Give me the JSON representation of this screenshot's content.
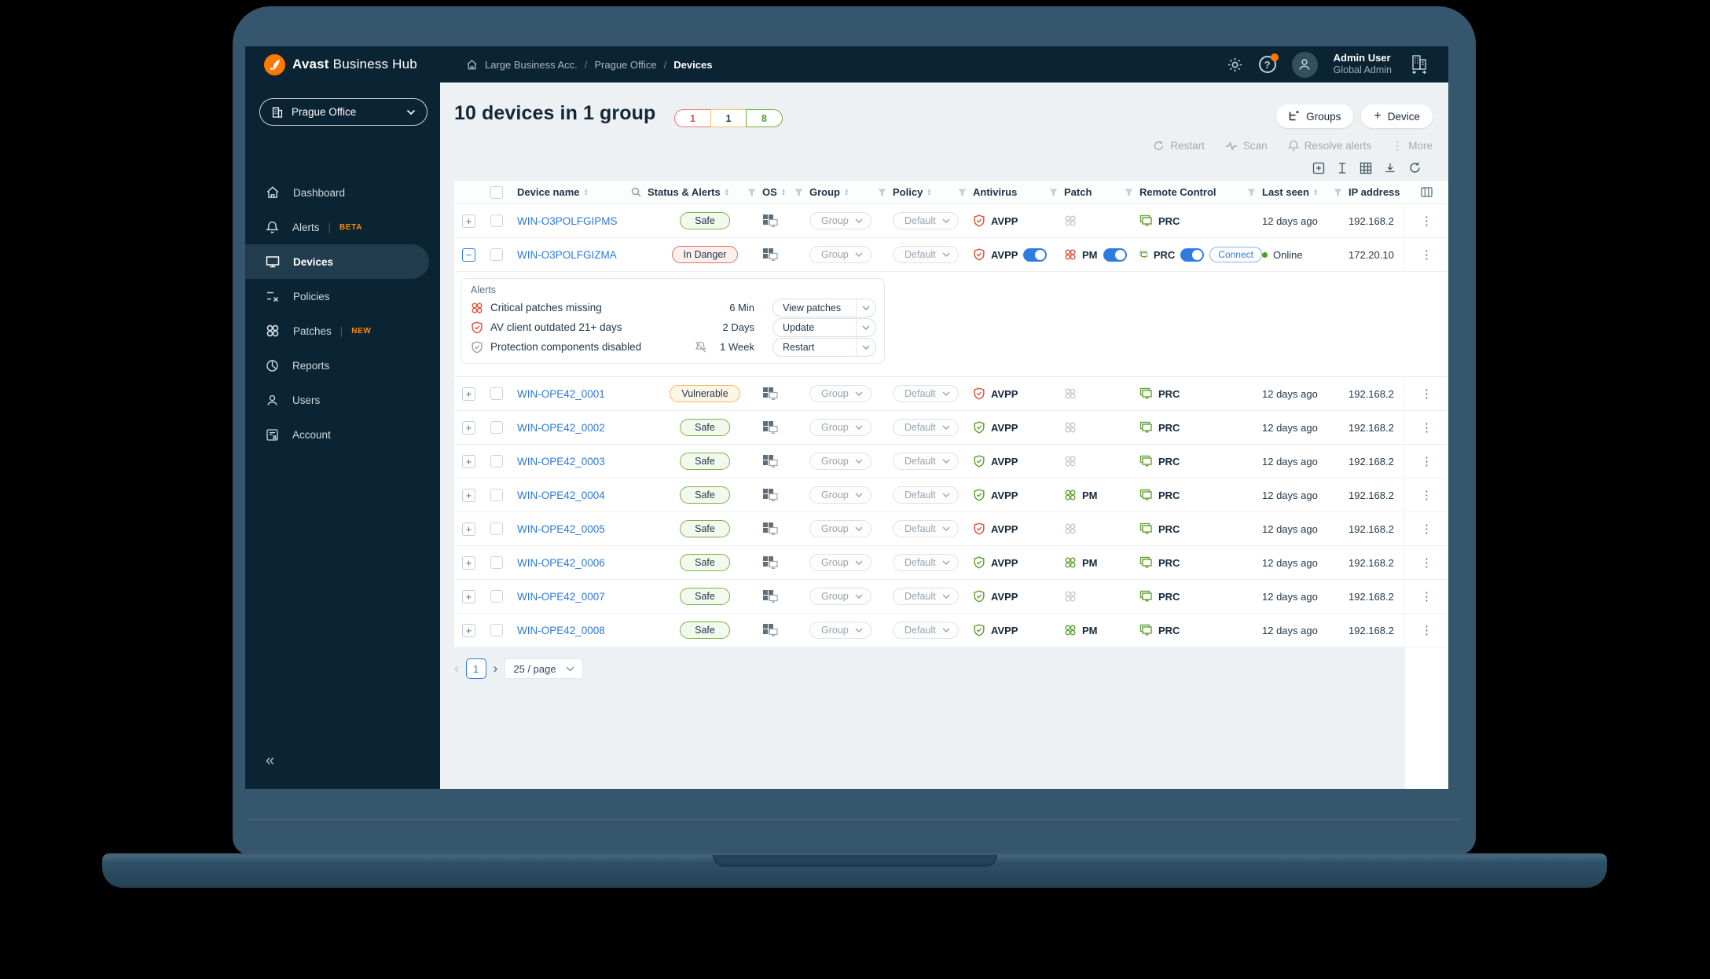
{
  "colors": {
    "navy": "#0b2433",
    "accent_blue": "#2f7ce0",
    "link_blue": "#2b78dd",
    "green": "#61a333",
    "red": "#e2543e",
    "orange_badge": "#eeb95c",
    "brand_orange": "#ff7800",
    "tag_orange": "#ff8a00",
    "content_bg": "#eef1f3"
  },
  "topbar": {
    "brand_bold": "Avast",
    "brand_rest": "Business Hub",
    "breadcrumb": [
      "Large Business Acc.",
      "Prague Office",
      "Devices"
    ],
    "user_name": "Admin User",
    "user_role": "Global Admin"
  },
  "sidebar": {
    "org_selector": "Prague Office",
    "items": [
      {
        "label": "Dashboard",
        "icon": "home-icon"
      },
      {
        "label": "Alerts",
        "icon": "bell-icon",
        "tag": "BETA"
      },
      {
        "label": "Devices",
        "icon": "monitor-icon",
        "selected": true
      },
      {
        "label": "Policies",
        "icon": "policies-icon"
      },
      {
        "label": "Patches",
        "icon": "patch-icon",
        "tag": "NEW"
      },
      {
        "label": "Reports",
        "icon": "pie-icon"
      },
      {
        "label": "Users",
        "icon": "person-icon"
      },
      {
        "label": "Account",
        "icon": "account-icon"
      }
    ],
    "collapse_glyph": "«"
  },
  "page": {
    "title": "10 devices in 1 group",
    "badges": [
      {
        "value": "1",
        "border": "#e87a74",
        "text": "#d94f4f"
      },
      {
        "value": "1",
        "border": "#ecc069",
        "text": "#2b3d4c"
      },
      {
        "value": "8",
        "border": "#74ad3f",
        "text": "#4f9e27"
      }
    ],
    "groups_button": "Groups",
    "device_button": "Device",
    "device_plus": "+",
    "bulk_actions": [
      {
        "label": "Restart",
        "icon": "restart-icon"
      },
      {
        "label": "Scan",
        "icon": "scan-icon"
      },
      {
        "label": "Resolve alerts",
        "icon": "bell-icon"
      },
      {
        "label": "More",
        "icon": "kebab-icon"
      }
    ]
  },
  "table": {
    "columns": [
      {
        "label": "Device name",
        "sort": true,
        "search": true
      },
      {
        "label": "Status & Alerts",
        "sort": true,
        "filter": true
      },
      {
        "label": "OS",
        "sort": true,
        "filter": true
      },
      {
        "label": "Group",
        "sort": true,
        "filter": true
      },
      {
        "label": "Policy",
        "sort": true,
        "filter": true
      },
      {
        "label": "Antivirus",
        "filter": true
      },
      {
        "label": "Patch",
        "filter": true
      },
      {
        "label": "Remote Control",
        "filter": true
      },
      {
        "label": "Last seen",
        "sort": true,
        "filter": true
      },
      {
        "label": "IP address"
      }
    ],
    "group_value": "Group",
    "policy_value": "Default",
    "av_label": "AVPP",
    "patch_label": "PM",
    "remote_label": "PRC",
    "connect_label": "Connect",
    "rows": [
      {
        "name": "WIN-O3POLFGIPMS",
        "status": "Safe",
        "status_type": "safe",
        "av": "red",
        "patch": "none",
        "last_seen": "12 days ago",
        "ip": "192.168.2"
      },
      {
        "name": "WIN-O3POLFGIZMA",
        "status": "In Danger",
        "status_type": "danger",
        "av": "red",
        "av_toggle": true,
        "patch": "red",
        "patch_pm": true,
        "patch_toggle": true,
        "remote_toggle": true,
        "connect": true,
        "online": true,
        "last_seen": "Online",
        "ip": "172.20.10",
        "expanded": true
      },
      {
        "name": "WIN-OPE42_0001",
        "status": "Vulnerable",
        "status_type": "vuln",
        "av": "red",
        "patch": "none",
        "last_seen": "12 days ago",
        "ip": "192.168.2"
      },
      {
        "name": "WIN-OPE42_0002",
        "status": "Safe",
        "status_type": "safe",
        "av": "green",
        "patch": "none",
        "last_seen": "12 days ago",
        "ip": "192.168.2"
      },
      {
        "name": "WIN-OPE42_0003",
        "status": "Safe",
        "status_type": "safe",
        "av": "green",
        "patch": "none",
        "last_seen": "12 days ago",
        "ip": "192.168.2"
      },
      {
        "name": "WIN-OPE42_0004",
        "status": "Safe",
        "status_type": "safe",
        "av": "green",
        "patch": "green",
        "patch_pm": true,
        "last_seen": "12 days ago",
        "ip": "192.168.2"
      },
      {
        "name": "WIN-OPE42_0005",
        "status": "Safe",
        "status_type": "safe",
        "av": "red",
        "patch": "none",
        "last_seen": "12 days ago",
        "ip": "192.168.2"
      },
      {
        "name": "WIN-OPE42_0006",
        "status": "Safe",
        "status_type": "safe",
        "av": "green",
        "patch": "green",
        "patch_pm": true,
        "last_seen": "12 days ago",
        "ip": "192.168.2"
      },
      {
        "name": "WIN-OPE42_0007",
        "status": "Safe",
        "status_type": "safe",
        "av": "green",
        "patch": "none",
        "last_seen": "12 days ago",
        "ip": "192.168.2"
      },
      {
        "name": "WIN-OPE42_0008",
        "status": "Safe",
        "status_type": "safe",
        "av": "green",
        "patch": "green",
        "patch_pm": true,
        "last_seen": "12 days ago",
        "ip": "192.168.2"
      }
    ]
  },
  "alerts_panel": {
    "title": "Alerts",
    "rows": [
      {
        "icon": "patch-red-icon",
        "text": "Critical patches missing",
        "age": "6 Min",
        "action": "View patches"
      },
      {
        "icon": "shield-red-icon",
        "text": "AV client outdated 21+ days",
        "age": "2 Days",
        "action": "Update"
      },
      {
        "icon": "shield-gray-icon",
        "text": "Protection components disabled",
        "age": "1 Week",
        "muted": true,
        "action": "Restart"
      }
    ]
  },
  "pagination": {
    "prev": "‹",
    "page": "1",
    "next": "›",
    "per_page": "25 / page"
  }
}
